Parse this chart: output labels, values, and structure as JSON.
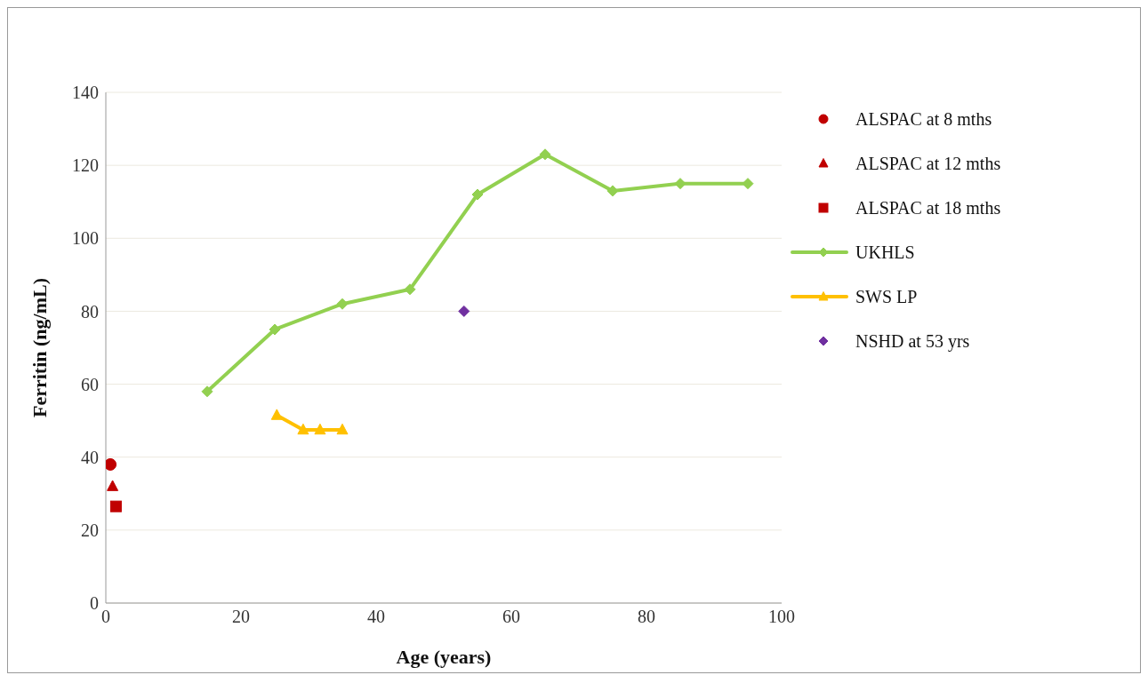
{
  "chart_data": {
    "type": "scatter",
    "xlabel": "Age (years)",
    "ylabel": "Ferritin (ng/mL)",
    "xlim": [
      0,
      100
    ],
    "xticks": [
      0,
      20,
      40,
      60,
      80,
      100
    ],
    "ylim": [
      0,
      140
    ],
    "yticks": [
      0,
      20,
      40,
      60,
      80,
      100,
      120,
      140
    ],
    "grid": "y",
    "legend": "right",
    "series": [
      {
        "name": "ALSPAC at 8 mths",
        "marker": "circle",
        "color": "#c00000",
        "x": [
          0.67
        ],
        "values": [
          38
        ]
      },
      {
        "name": "ALSPAC at 12 mths",
        "marker": "triangle",
        "color": "#c00000",
        "x": [
          1
        ],
        "values": [
          32
        ]
      },
      {
        "name": "ALSPAC at 18 mths",
        "marker": "square",
        "color": "#c00000",
        "x": [
          1.5
        ],
        "values": [
          26.5
        ]
      },
      {
        "name": "UKHLS",
        "type": "line",
        "marker": "diamond",
        "color": "#92d050",
        "x": [
          15,
          25,
          35,
          45,
          55,
          65,
          75,
          85,
          95
        ],
        "values": [
          58,
          75,
          82,
          86,
          112,
          123,
          113,
          115,
          115
        ]
      },
      {
        "name": "SWS LP",
        "type": "line",
        "marker": "triangle",
        "color": "#ffc000",
        "x": [
          25.3,
          29.2,
          31.7,
          35
        ],
        "values": [
          51.5,
          47.5,
          47.5,
          47.5
        ]
      },
      {
        "name": "NSHD at 53 yrs",
        "marker": "diamond",
        "color": "#7030a0",
        "x": [
          53
        ],
        "values": [
          80
        ]
      }
    ]
  }
}
